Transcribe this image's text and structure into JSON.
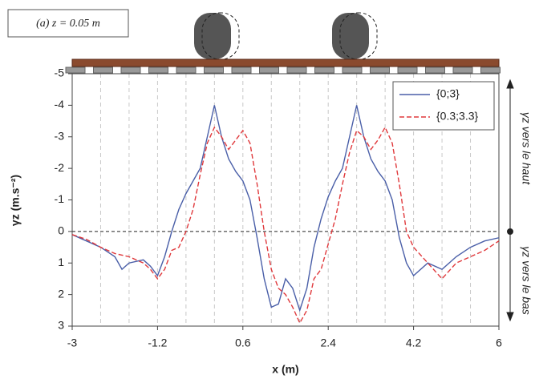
{
  "chart_data": {
    "type": "line",
    "annotation": "(a) z = 0.05 m",
    "xlabel": "x (m)",
    "ylabel": "γz (m.s⁻²)",
    "up_label": "γz vers le haut",
    "down_label": "γz vers le bas",
    "x": [
      -3,
      -2.7,
      -2.4,
      -2.1,
      -1.95,
      -1.8,
      -1.5,
      -1.35,
      -1.2,
      -1.05,
      -0.9,
      -0.75,
      -0.6,
      -0.45,
      -0.3,
      -0.15,
      0,
      0.15,
      0.3,
      0.45,
      0.6,
      0.75,
      0.9,
      1.05,
      1.2,
      1.35,
      1.5,
      1.65,
      1.8,
      1.95,
      2.1,
      2.25,
      2.4,
      2.55,
      2.7,
      2.85,
      3,
      3.15,
      3.3,
      3.45,
      3.6,
      3.75,
      3.9,
      4.05,
      4.2,
      4.5,
      4.8,
      5.1,
      5.4,
      5.7,
      6
    ],
    "series": [
      {
        "name": "{0;3}",
        "color": "#4a5fa8",
        "dash": false,
        "values": [
          0.1,
          0.3,
          0.5,
          0.8,
          1.2,
          1.0,
          0.9,
          1.1,
          1.4,
          0.8,
          0,
          -0.7,
          -1.2,
          -1.6,
          -2.0,
          -3.0,
          -4.0,
          -3.0,
          -2.3,
          -1.9,
          -1.6,
          -1.0,
          0.2,
          1.5,
          2.4,
          2.3,
          1.5,
          1.8,
          2.5,
          1.8,
          0.5,
          -0.4,
          -1.1,
          -1.6,
          -2.0,
          -3.0,
          -4.0,
          -3.0,
          -2.3,
          -1.9,
          -1.6,
          -1.0,
          0.2,
          1.0,
          1.4,
          1.0,
          1.2,
          0.8,
          0.5,
          0.3,
          0.2
        ]
      },
      {
        "name": "{0.3;3.3}",
        "color": "#e0393c",
        "dash": true,
        "values": [
          0.1,
          0.25,
          0.5,
          0.7,
          0.75,
          0.8,
          1.0,
          1.2,
          1.5,
          1.2,
          0.6,
          0.5,
          0,
          -0.7,
          -1.8,
          -2.8,
          -3.3,
          -3.0,
          -2.6,
          -2.9,
          -3.2,
          -2.8,
          -1.5,
          0,
          1.2,
          1.8,
          2.0,
          2.4,
          2.9,
          2.5,
          1.5,
          1.2,
          0.4,
          -0.4,
          -1.5,
          -2.5,
          -3.2,
          -3.0,
          -2.6,
          -2.9,
          -3.3,
          -2.8,
          -1.5,
          0,
          0.5,
          1.0,
          1.5,
          1.0,
          0.8,
          0.6,
          0.3
        ]
      }
    ],
    "xlim": [
      -3,
      6
    ],
    "xticks": [
      -3,
      -1.2,
      0.6,
      2.4,
      4.2,
      6
    ],
    "xgrid": [
      -2.4,
      -1.8,
      -1.2,
      -0.6,
      0,
      0.6,
      1.2,
      1.8,
      2.4,
      3,
      3.6,
      4.2,
      4.8,
      5.4
    ],
    "ylim": [
      -5,
      3
    ],
    "yticks": [
      -5,
      -4,
      -3,
      -2,
      -1,
      0,
      1,
      2,
      3
    ],
    "y_inverted": true,
    "legend": "top-right"
  }
}
